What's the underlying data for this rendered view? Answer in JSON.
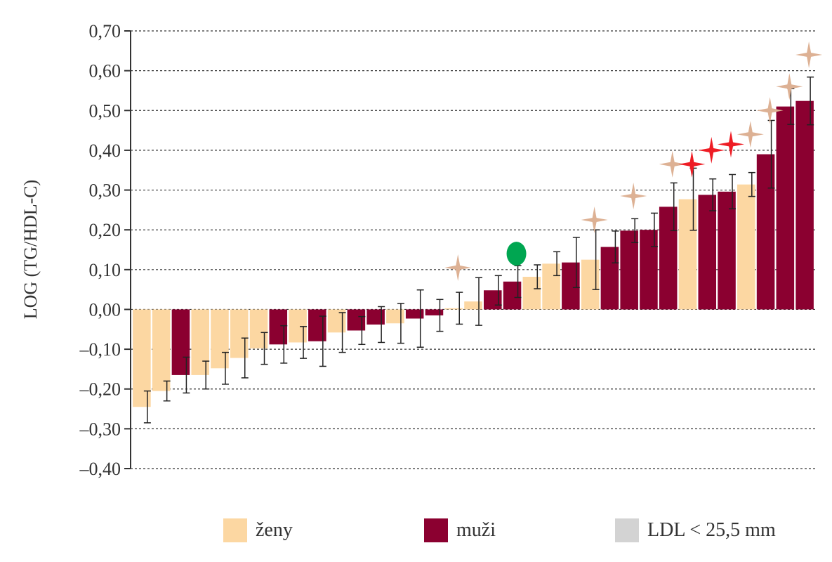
{
  "colors": {
    "zeny": "#fcd7a2",
    "muzi": "#8b0030",
    "ldl": "#d3d3d3",
    "star_beige": "#ddb194",
    "star_red": "#ee1c24",
    "dot_green": "#00a651",
    "grid": "#333333",
    "text": "#333333"
  },
  "legend": [
    {
      "label": "ženy",
      "color_key": "zeny"
    },
    {
      "label": "muži",
      "color_key": "muzi"
    },
    {
      "label": "LDL < 25,5 mm",
      "color_key": "ldl"
    }
  ],
  "chart_data": {
    "type": "bar",
    "ylabel": "LOG (TG/HDL-C)",
    "ylim": [
      -0.4,
      0.7
    ],
    "yticks": [
      -0.4,
      -0.3,
      -0.2,
      -0.1,
      0.0,
      0.1,
      0.2,
      0.3,
      0.4,
      0.5,
      0.6,
      0.7
    ],
    "ytick_labels": [
      "–0,40",
      "–0,30",
      "–0,20",
      "–0,10",
      "0,00",
      "0,10",
      "0,20",
      "0,30",
      "0,40",
      "0,50",
      "0,60",
      "0,70"
    ],
    "grid": "horizontal dashed",
    "legend_position": "bottom",
    "bars": [
      {
        "value": -0.245,
        "err": 0.04,
        "group": "ženy"
      },
      {
        "value": -0.205,
        "err": 0.025,
        "group": "ženy"
      },
      {
        "value": -0.165,
        "err": 0.045,
        "group": "muži"
      },
      {
        "value": -0.165,
        "err": 0.035,
        "group": "ženy"
      },
      {
        "value": -0.148,
        "err": 0.04,
        "group": "ženy"
      },
      {
        "value": -0.122,
        "err": 0.05,
        "group": "ženy"
      },
      {
        "value": -0.098,
        "err": 0.04,
        "group": "ženy"
      },
      {
        "value": -0.088,
        "err": 0.047,
        "group": "muži"
      },
      {
        "value": -0.083,
        "err": 0.04,
        "group": "ženy"
      },
      {
        "value": -0.08,
        "err": 0.063,
        "group": "muži"
      },
      {
        "value": -0.058,
        "err": 0.05,
        "group": "ženy"
      },
      {
        "value": -0.053,
        "err": 0.035,
        "group": "muži"
      },
      {
        "value": -0.038,
        "err": 0.045,
        "group": "muži"
      },
      {
        "value": -0.035,
        "err": 0.05,
        "group": "ženy"
      },
      {
        "value": -0.023,
        "err": 0.072,
        "group": "muži"
      },
      {
        "value": -0.015,
        "err": 0.04,
        "group": "muži"
      },
      {
        "value": 0.003,
        "err": 0.04,
        "group": "ženy"
      },
      {
        "value": 0.02,
        "err": 0.06,
        "group": "ženy"
      },
      {
        "value": 0.048,
        "err": 0.037,
        "group": "muži"
      },
      {
        "value": 0.07,
        "err": 0.04,
        "group": "muži"
      },
      {
        "value": 0.082,
        "err": 0.03,
        "group": "ženy"
      },
      {
        "value": 0.115,
        "err": 0.03,
        "group": "ženy"
      },
      {
        "value": 0.118,
        "err": 0.063,
        "group": "muži"
      },
      {
        "value": 0.125,
        "err": 0.075,
        "group": "ženy"
      },
      {
        "value": 0.157,
        "err": 0.04,
        "group": "muži"
      },
      {
        "value": 0.198,
        "err": 0.03,
        "group": "muži"
      },
      {
        "value": 0.2,
        "err": 0.042,
        "group": "muži"
      },
      {
        "value": 0.258,
        "err": 0.06,
        "group": "muži"
      },
      {
        "value": 0.277,
        "err": 0.078,
        "group": "ženy"
      },
      {
        "value": 0.288,
        "err": 0.04,
        "group": "muži"
      },
      {
        "value": 0.296,
        "err": 0.043,
        "group": "muži"
      },
      {
        "value": 0.314,
        "err": 0.03,
        "group": "ženy"
      },
      {
        "value": 0.39,
        "err": 0.085,
        "group": "muži"
      },
      {
        "value": 0.51,
        "err": 0.045,
        "group": "muži"
      },
      {
        "value": 0.524,
        "err": 0.06,
        "group": "muži"
      }
    ],
    "markers": [
      {
        "bar_index": 16,
        "shape": "star",
        "color_key": "star_beige",
        "y": 0.105
      },
      {
        "bar_index": 19,
        "shape": "dot",
        "color_key": "dot_green",
        "y": 0.14
      },
      {
        "bar_index": 23,
        "shape": "star",
        "color_key": "star_beige",
        "y": 0.225
      },
      {
        "bar_index": 25,
        "shape": "star",
        "color_key": "star_beige",
        "y": 0.285
      },
      {
        "bar_index": 27,
        "shape": "star",
        "color_key": "star_beige",
        "y": 0.365
      },
      {
        "bar_index": 28,
        "shape": "star",
        "color_key": "star_red",
        "y": 0.365
      },
      {
        "bar_index": 29,
        "shape": "star",
        "color_key": "star_red",
        "y": 0.4
      },
      {
        "bar_index": 30,
        "shape": "star",
        "color_key": "star_red",
        "y": 0.415
      },
      {
        "bar_index": 31,
        "shape": "star",
        "color_key": "star_beige",
        "y": 0.44
      },
      {
        "bar_index": 32,
        "shape": "star",
        "color_key": "star_beige",
        "y": 0.5
      },
      {
        "bar_index": 33,
        "shape": "star",
        "color_key": "star_beige",
        "y": 0.56
      },
      {
        "bar_index": 34,
        "shape": "star",
        "color_key": "star_beige",
        "y": 0.64
      }
    ]
  }
}
